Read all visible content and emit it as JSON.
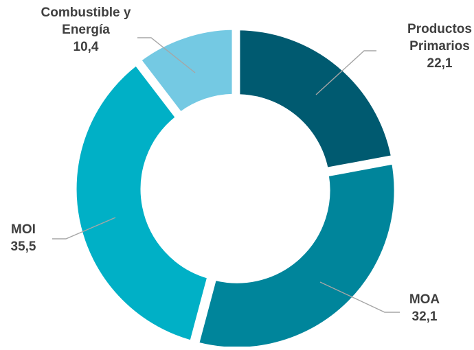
{
  "chart_data": {
    "type": "pie",
    "variant": "donut",
    "title": "",
    "categories": [
      "Productos Primarios",
      "MOA",
      "MOI",
      "Combustible y Energía"
    ],
    "values": [
      22.1,
      32.1,
      35.5,
      10.4
    ],
    "value_labels": [
      "22,1",
      "32,1",
      "35,5",
      "10,4"
    ],
    "colors": [
      "#005a70",
      "#00859b",
      "#00b0c6",
      "#74c9e3"
    ],
    "label_lines": [
      [
        "Productos",
        "Primarios"
      ],
      [
        "MOA"
      ],
      [
        "MOI"
      ],
      [
        "Combustible y",
        "Energía"
      ]
    ],
    "legend": "none",
    "grid": false
  }
}
